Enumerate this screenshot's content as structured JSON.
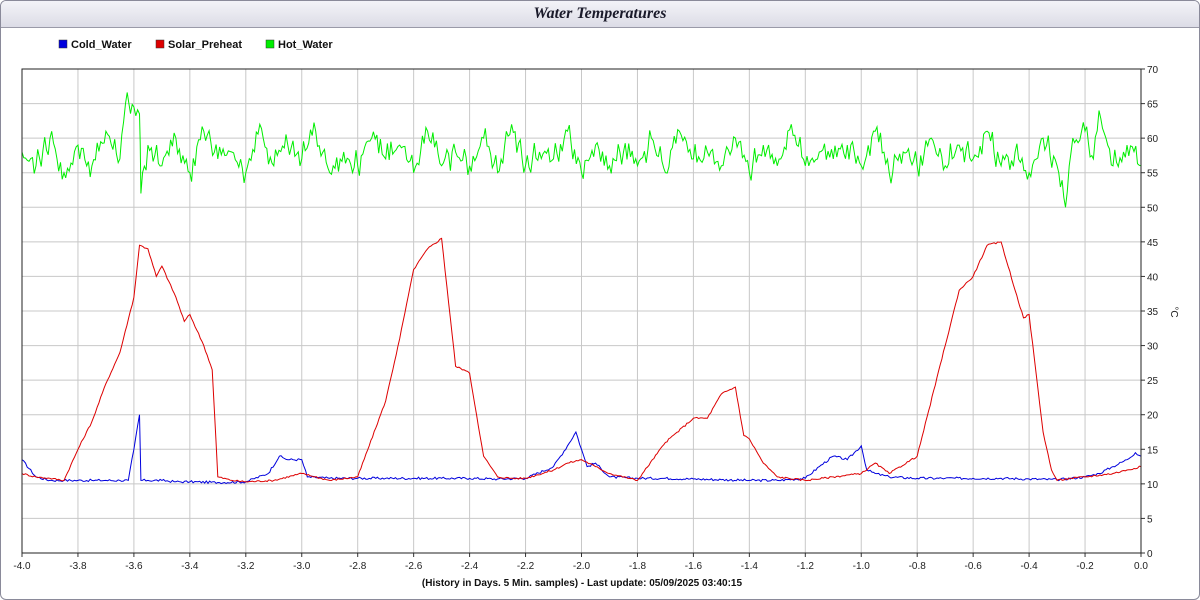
{
  "chart_data": {
    "type": "line",
    "title": "Water Temperatures",
    "xlabel": "(History in Days. 5 Min. samples) - Last update: 05/09/2025 03:40:15",
    "ylabel": "°C",
    "xlim": [
      -4.0,
      0.0
    ],
    "ylim": [
      0,
      70
    ],
    "x_ticks": [
      "-4.0",
      "-3.8",
      "-3.6",
      "-3.4",
      "-3.2",
      "-3.0",
      "-2.8",
      "-2.6",
      "-2.4",
      "-2.2",
      "-2.0",
      "-1.8",
      "-1.6",
      "-1.4",
      "-1.2",
      "-1.0",
      "-0.8",
      "-0.6",
      "-0.4",
      "-0.2",
      "0.0"
    ],
    "y_ticks": [
      "0",
      "5",
      "10",
      "15",
      "20",
      "25",
      "30",
      "35",
      "40",
      "45",
      "50",
      "55",
      "60",
      "65",
      "70"
    ],
    "grid": true,
    "legend_position": "top-left",
    "series": [
      {
        "name": "Cold_Water",
        "color": "#0000dd",
        "x": [
          -4.0,
          -3.95,
          -3.9,
          -3.85,
          -3.8,
          -3.75,
          -3.7,
          -3.65,
          -3.62,
          -3.6,
          -3.58,
          -3.575,
          -3.57,
          -3.55,
          -3.5,
          -3.45,
          -3.4,
          -3.3,
          -3.2,
          -3.12,
          -3.08,
          -3.05,
          -3.0,
          -2.98,
          -2.9,
          -2.8,
          -2.7,
          -2.6,
          -2.5,
          -2.4,
          -2.3,
          -2.2,
          -2.1,
          -2.05,
          -2.02,
          -2.0,
          -1.98,
          -1.95,
          -1.9,
          -1.8,
          -1.7,
          -1.6,
          -1.5,
          -1.4,
          -1.3,
          -1.2,
          -1.15,
          -1.1,
          -1.05,
          -1.0,
          -0.98,
          -0.95,
          -0.9,
          -0.8,
          -0.7,
          -0.6,
          -0.5,
          -0.4,
          -0.3,
          -0.2,
          -0.15,
          -0.1,
          -0.05,
          -0.02,
          0.0
        ],
        "values": [
          13.5,
          11.0,
          10.5,
          10.5,
          10.5,
          10.5,
          10.5,
          10.5,
          10.5,
          15.0,
          20.0,
          10.5,
          10.5,
          10.5,
          10.5,
          10.3,
          10.3,
          10.2,
          10.3,
          11.5,
          14.0,
          13.5,
          13.5,
          11.0,
          10.8,
          10.8,
          10.8,
          10.8,
          10.8,
          10.8,
          10.7,
          10.8,
          12.5,
          15.5,
          17.5,
          15.0,
          12.5,
          13.0,
          11.0,
          10.8,
          10.8,
          10.7,
          10.6,
          10.5,
          10.5,
          10.8,
          12.5,
          14.0,
          13.5,
          15.5,
          12.0,
          11.5,
          11.0,
          10.8,
          10.8,
          10.8,
          10.8,
          10.7,
          10.6,
          11.0,
          11.5,
          12.5,
          13.5,
          14.5,
          14.0
        ]
      },
      {
        "name": "Solar_Preheat",
        "color": "#dd0000",
        "x": [
          -4.0,
          -3.95,
          -3.9,
          -3.85,
          -3.8,
          -3.75,
          -3.7,
          -3.65,
          -3.6,
          -3.58,
          -3.55,
          -3.52,
          -3.5,
          -3.45,
          -3.42,
          -3.4,
          -3.35,
          -3.32,
          -3.3,
          -3.25,
          -3.2,
          -3.1,
          -3.0,
          -2.9,
          -2.8,
          -2.7,
          -2.65,
          -2.6,
          -2.55,
          -2.5,
          -2.45,
          -2.42,
          -2.4,
          -2.35,
          -2.3,
          -2.25,
          -2.2,
          -2.1,
          -2.05,
          -2.0,
          -1.95,
          -1.9,
          -1.8,
          -1.7,
          -1.6,
          -1.55,
          -1.5,
          -1.45,
          -1.42,
          -1.4,
          -1.35,
          -1.3,
          -1.2,
          -1.1,
          -1.0,
          -0.95,
          -0.9,
          -0.8,
          -0.7,
          -0.65,
          -0.6,
          -0.55,
          -0.5,
          -0.45,
          -0.42,
          -0.4,
          -0.35,
          -0.32,
          -0.3,
          -0.25,
          -0.2,
          -0.1,
          -0.05,
          0.0
        ],
        "values": [
          11.5,
          11.0,
          10.8,
          10.5,
          15.0,
          19.0,
          24.5,
          29.0,
          37.0,
          44.5,
          44.0,
          40.0,
          41.5,
          37.0,
          33.5,
          34.5,
          30.0,
          26.5,
          11.0,
          10.5,
          10.3,
          10.5,
          11.5,
          10.5,
          11.0,
          22.0,
          31.0,
          41.0,
          44.0,
          45.5,
          27.0,
          26.5,
          26.0,
          14.0,
          11.0,
          10.8,
          10.8,
          12.0,
          13.0,
          13.5,
          12.5,
          11.5,
          10.5,
          16.0,
          19.5,
          19.5,
          23.0,
          24.0,
          17.0,
          16.5,
          13.0,
          11.0,
          10.5,
          11.0,
          11.5,
          13.0,
          11.5,
          14.0,
          30.0,
          38.0,
          40.0,
          44.5,
          45.0,
          38.0,
          34.0,
          34.5,
          17.5,
          12.0,
          10.5,
          10.8,
          11.0,
          11.5,
          12.0,
          12.5
        ]
      },
      {
        "name": "Hot_Water",
        "color": "#00ee00",
        "x": [
          -4.0,
          -3.95,
          -3.9,
          -3.85,
          -3.8,
          -3.75,
          -3.7,
          -3.65,
          -3.63,
          -3.6,
          -3.58,
          -3.575,
          -3.55,
          -3.5,
          -3.45,
          -3.4,
          -3.35,
          -3.3,
          -3.25,
          -3.2,
          -3.15,
          -3.1,
          -3.05,
          -3.0,
          -2.95,
          -2.9,
          -2.85,
          -2.8,
          -2.75,
          -2.7,
          -2.65,
          -2.6,
          -2.55,
          -2.5,
          -2.45,
          -2.4,
          -2.35,
          -2.3,
          -2.25,
          -2.2,
          -2.15,
          -2.1,
          -2.05,
          -2.0,
          -1.95,
          -1.9,
          -1.85,
          -1.8,
          -1.75,
          -1.7,
          -1.65,
          -1.6,
          -1.55,
          -1.5,
          -1.45,
          -1.4,
          -1.35,
          -1.3,
          -1.25,
          -1.2,
          -1.15,
          -1.1,
          -1.05,
          -1.0,
          -0.95,
          -0.9,
          -0.85,
          -0.8,
          -0.75,
          -0.7,
          -0.65,
          -0.6,
          -0.55,
          -0.5,
          -0.45,
          -0.4,
          -0.35,
          -0.3,
          -0.27,
          -0.25,
          -0.2,
          -0.17,
          -0.15,
          -0.1,
          -0.05,
          0.0
        ],
        "values": [
          58,
          56,
          60,
          55,
          59,
          56,
          61,
          57,
          65,
          64.5,
          63.5,
          52,
          59,
          56,
          60,
          55,
          61,
          57,
          58,
          55,
          62,
          56,
          59,
          57,
          61,
          55,
          58,
          56,
          60,
          57,
          59,
          55,
          61,
          56,
          58,
          56,
          60,
          55,
          62,
          56,
          58,
          57,
          61,
          55,
          59,
          56,
          58,
          56,
          60,
          55,
          61,
          57,
          58,
          56,
          60,
          55,
          59,
          56,
          62,
          56,
          58,
          57,
          59,
          56,
          61,
          55,
          58,
          56,
          60,
          56,
          59,
          57,
          61,
          56,
          58,
          55,
          60,
          56,
          50,
          58,
          61,
          57,
          64,
          56,
          59,
          56
        ]
      }
    ]
  }
}
